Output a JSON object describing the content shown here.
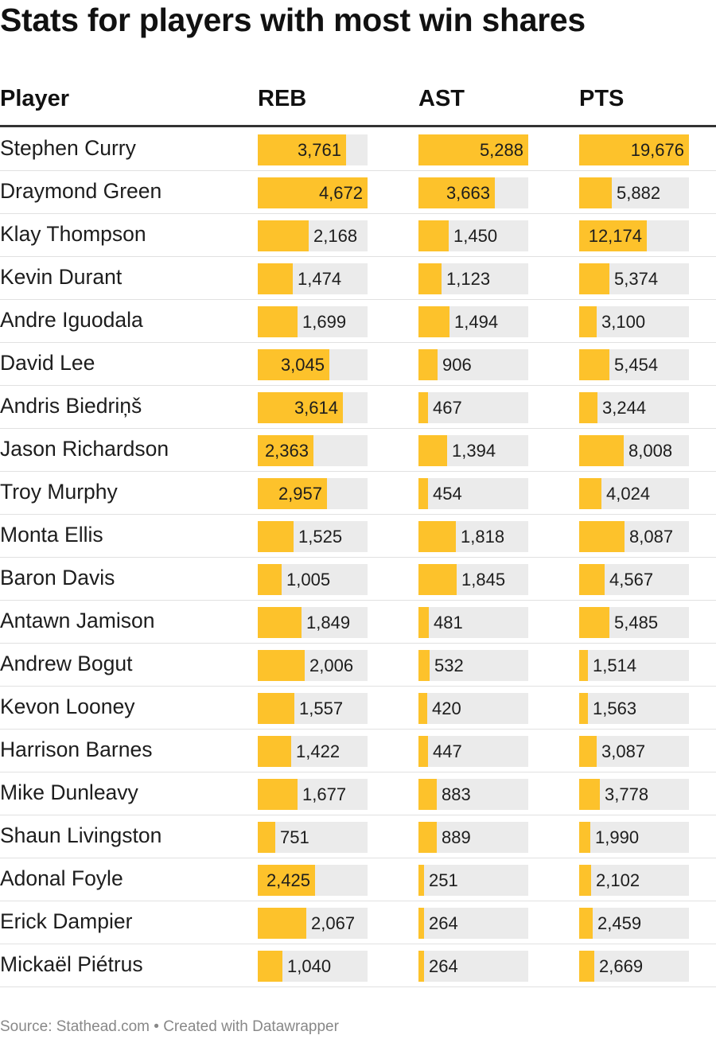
{
  "title": "Stats for players with most win shares",
  "columns": [
    "Player",
    "REB",
    "AST",
    "PTS"
  ],
  "chart_data": {
    "type": "table",
    "title": "Stats for players with most win shares",
    "columns": [
      "Player",
      "REB",
      "AST",
      "PTS"
    ],
    "max": {
      "REB": 4672,
      "AST": 5288,
      "PTS": 19676
    },
    "bar_color": "#fdc22b",
    "track_color": "#ebebeb",
    "rows": [
      {
        "player": "Stephen Curry",
        "REB": 3761,
        "AST": 5288,
        "PTS": 19676,
        "REB_label": "3,761",
        "AST_label": "5,288",
        "PTS_label": "19,676"
      },
      {
        "player": "Draymond Green",
        "REB": 4672,
        "AST": 3663,
        "PTS": 5882,
        "REB_label": "4,672",
        "AST_label": "3,663",
        "PTS_label": "5,882"
      },
      {
        "player": "Klay Thompson",
        "REB": 2168,
        "AST": 1450,
        "PTS": 12174,
        "REB_label": "2,168",
        "AST_label": "1,450",
        "PTS_label": "12,174"
      },
      {
        "player": "Kevin Durant",
        "REB": 1474,
        "AST": 1123,
        "PTS": 5374,
        "REB_label": "1,474",
        "AST_label": "1,123",
        "PTS_label": "5,374"
      },
      {
        "player": "Andre Iguodala",
        "REB": 1699,
        "AST": 1494,
        "PTS": 3100,
        "REB_label": "1,699",
        "AST_label": "1,494",
        "PTS_label": "3,100"
      },
      {
        "player": "David Lee",
        "REB": 3045,
        "AST": 906,
        "PTS": 5454,
        "REB_label": "3,045",
        "AST_label": "906",
        "PTS_label": "5,454"
      },
      {
        "player": "Andris Biedriņš",
        "REB": 3614,
        "AST": 467,
        "PTS": 3244,
        "REB_label": "3,614",
        "AST_label": "467",
        "PTS_label": "3,244"
      },
      {
        "player": "Jason Richardson",
        "REB": 2363,
        "AST": 1394,
        "PTS": 8008,
        "REB_label": "2,363",
        "AST_label": "1,394",
        "PTS_label": "8,008"
      },
      {
        "player": "Troy Murphy",
        "REB": 2957,
        "AST": 454,
        "PTS": 4024,
        "REB_label": "2,957",
        "AST_label": "454",
        "PTS_label": "4,024"
      },
      {
        "player": "Monta Ellis",
        "REB": 1525,
        "AST": 1818,
        "PTS": 8087,
        "REB_label": "1,525",
        "AST_label": "1,818",
        "PTS_label": "8,087"
      },
      {
        "player": "Baron Davis",
        "REB": 1005,
        "AST": 1845,
        "PTS": 4567,
        "REB_label": "1,005",
        "AST_label": "1,845",
        "PTS_label": "4,567"
      },
      {
        "player": "Antawn Jamison",
        "REB": 1849,
        "AST": 481,
        "PTS": 5485,
        "REB_label": "1,849",
        "AST_label": "481",
        "PTS_label": "5,485"
      },
      {
        "player": "Andrew Bogut",
        "REB": 2006,
        "AST": 532,
        "PTS": 1514,
        "REB_label": "2,006",
        "AST_label": "532",
        "PTS_label": "1,514"
      },
      {
        "player": "Kevon Looney",
        "REB": 1557,
        "AST": 420,
        "PTS": 1563,
        "REB_label": "1,557",
        "AST_label": "420",
        "PTS_label": "1,563"
      },
      {
        "player": "Harrison Barnes",
        "REB": 1422,
        "AST": 447,
        "PTS": 3087,
        "REB_label": "1,422",
        "AST_label": "447",
        "PTS_label": "3,087"
      },
      {
        "player": "Mike Dunleavy",
        "REB": 1677,
        "AST": 883,
        "PTS": 3778,
        "REB_label": "1,677",
        "AST_label": "883",
        "PTS_label": "3,778"
      },
      {
        "player": "Shaun Livingston",
        "REB": 751,
        "AST": 889,
        "PTS": 1990,
        "REB_label": "751",
        "AST_label": "889",
        "PTS_label": "1,990"
      },
      {
        "player": "Adonal Foyle",
        "REB": 2425,
        "AST": 251,
        "PTS": 2102,
        "REB_label": "2,425",
        "AST_label": "251",
        "PTS_label": "2,102"
      },
      {
        "player": "Erick Dampier",
        "REB": 2067,
        "AST": 264,
        "PTS": 2459,
        "REB_label": "2,067",
        "AST_label": "264",
        "PTS_label": "2,459"
      },
      {
        "player": "Mickaël Piétrus",
        "REB": 1040,
        "AST": 264,
        "PTS": 2669,
        "REB_label": "1,040",
        "AST_label": "264",
        "PTS_label": "2,669"
      }
    ]
  },
  "footer": "Source: Stathead.com • Created with Datawrapper"
}
